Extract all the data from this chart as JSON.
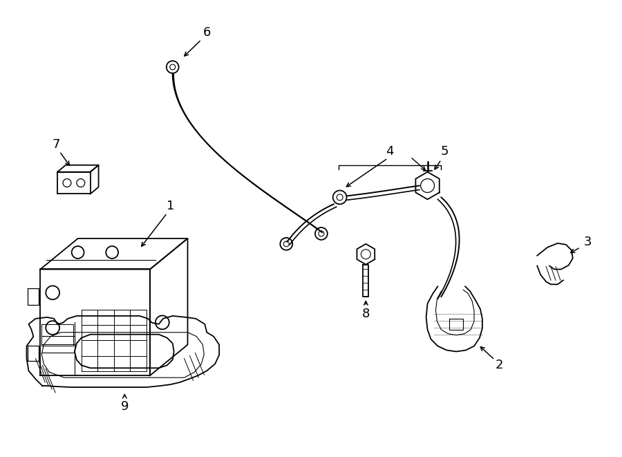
{
  "background_color": "#ffffff",
  "line_color": "#000000",
  "lw": 1.3,
  "fig_w": 9.0,
  "fig_h": 6.61,
  "dpi": 100
}
